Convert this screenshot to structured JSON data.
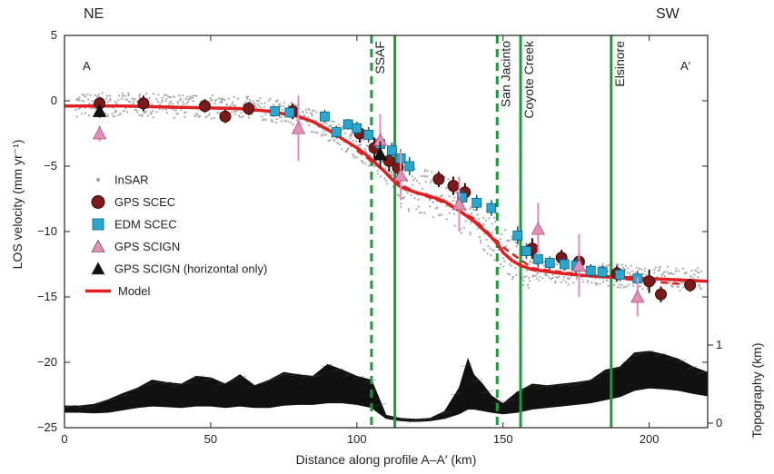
{
  "chart_data": {
    "type": "scatter",
    "corner_labels": {
      "left": "NE",
      "right": "SW"
    },
    "profile_labels": {
      "start": "A",
      "end": "A′"
    },
    "xlabel": "Distance along profile A–A′ (km)",
    "ylabel": "LOS velocity (mm yr⁻¹)",
    "ylabel_right": "Topography (km)",
    "xlim": [
      0,
      220
    ],
    "ylim": [
      -25,
      5
    ],
    "topo_lim": [
      0,
      1
    ],
    "x_ticks": [
      0,
      50,
      100,
      150,
      200
    ],
    "x_tick_labels": [
      "0",
      "50",
      "100",
      "150",
      "200"
    ],
    "y_ticks": [
      5,
      0,
      -5,
      -10,
      -15,
      -20,
      -25
    ],
    "y_tick_labels": [
      "5",
      "0",
      "−5",
      "−10",
      "−15",
      "−20",
      "−25"
    ],
    "topo_ticks": [
      0,
      1
    ],
    "topo_tick_labels": [
      "0",
      "1"
    ],
    "faults": [
      {
        "name": "SSAF",
        "x": 105,
        "style": "dashed"
      },
      {
        "name": "",
        "x": 113,
        "style": "solid"
      },
      {
        "name": "San Jacinto",
        "x": 148,
        "style": "dashed"
      },
      {
        "name": "Coyote Creek",
        "x": 156,
        "style": "solid"
      },
      {
        "name": "Elsinore",
        "x": 187,
        "style": "solid"
      }
    ],
    "legend": {
      "position": "left",
      "entries": [
        {
          "label": "InSAR",
          "marker": "dot",
          "color": "#a0a0a0"
        },
        {
          "label": "GPS SCEC",
          "marker": "circle",
          "color": "#7a1a1a"
        },
        {
          "label": "EDM SCEC",
          "marker": "square",
          "color": "#2aa6cf"
        },
        {
          "label": "GPS SCIGN",
          "marker": "triangle",
          "color": "#e38fb5"
        },
        {
          "label": "GPS SCIGN (horizontal only)",
          "marker": "triangle",
          "color": "#111111"
        },
        {
          "label": "Model",
          "marker": "line",
          "color": "#e02020"
        }
      ]
    },
    "series": [
      {
        "key": "model",
        "color": "#e02020",
        "x": [
          0,
          20,
          40,
          60,
          70,
          80,
          85,
          90,
          95,
          100,
          103,
          106,
          109,
          112,
          115,
          120,
          125,
          130,
          135,
          140,
          145,
          148,
          150,
          153,
          156,
          160,
          170,
          180,
          190,
          200,
          210,
          220
        ],
        "y": [
          -0.4,
          -0.4,
          -0.5,
          -0.6,
          -0.8,
          -1.2,
          -1.6,
          -2.2,
          -2.9,
          -3.6,
          -4.1,
          -4.7,
          -5.3,
          -6.0,
          -6.6,
          -7.0,
          -7.3,
          -7.7,
          -8.4,
          -9.2,
          -10.2,
          -10.9,
          -11.6,
          -12.2,
          -12.6,
          -12.9,
          -13.2,
          -13.4,
          -13.5,
          -13.6,
          -13.7,
          -13.8
        ]
      },
      {
        "key": "model_alt",
        "color": "#e02020",
        "x": [
          100,
          105,
          110,
          115,
          120,
          130,
          140,
          150,
          160,
          180,
          200,
          215
        ],
        "y": [
          -3.8,
          -4.6,
          -5.5,
          -6.4,
          -7.0,
          -7.8,
          -9.0,
          -11.2,
          -12.8,
          -13.4,
          -13.8,
          -14.1
        ]
      },
      {
        "key": "gps_scec",
        "color": "#7a1a1a",
        "x": [
          12,
          27,
          48,
          55,
          63,
          78,
          101,
          106,
          111,
          114,
          128,
          133,
          137,
          160,
          170,
          176,
          189,
          200,
          214
        ],
        "y": [
          -0.2,
          -0.2,
          -0.4,
          -1.2,
          -0.6,
          -0.8,
          -2.5,
          -3.6,
          -4.6,
          -5.1,
          -6.0,
          -6.5,
          -7.0,
          -11.3,
          -12.0,
          -12.3,
          -13.2,
          -13.8,
          -14.1
        ],
        "err": [
          0.5,
          0.6,
          0.5,
          0.5,
          0.5,
          0.6,
          0.7,
          0.8,
          0.8,
          0.9,
          0.6,
          0.7,
          0.7,
          0.8,
          0.6,
          0.7,
          0.6,
          0.9,
          0.5
        ]
      },
      {
        "key": "gps_scec_low",
        "color": "#7a1a1a",
        "x": [
          204
        ],
        "y": [
          -14.8
        ],
        "err": [
          0.6
        ]
      },
      {
        "key": "edm_scec",
        "color": "#2aa6cf",
        "x": [
          72,
          77,
          89,
          93,
          97,
          100,
          104,
          108,
          112,
          115,
          118,
          136,
          141,
          146,
          155,
          158,
          162,
          166,
          171,
          175,
          180,
          184,
          190,
          196
        ],
        "y": [
          -0.8,
          -0.9,
          -1.2,
          -2.4,
          -1.8,
          -2.1,
          -2.6,
          -3.3,
          -3.8,
          -4.4,
          -5.0,
          -7.4,
          -7.8,
          -8.2,
          -10.3,
          -11.5,
          -12.1,
          -12.4,
          -12.5,
          -12.6,
          -13.0,
          -13.1,
          -13.3,
          -13.6
        ],
        "err": [
          0.4,
          0.4,
          0.5,
          0.5,
          0.4,
          0.5,
          0.6,
          0.6,
          0.6,
          0.7,
          0.7,
          0.6,
          0.6,
          0.6,
          0.7,
          0.6,
          0.6,
          0.5,
          0.5,
          0.6,
          0.5,
          0.5,
          0.5,
          0.6
        ]
      },
      {
        "key": "gps_scign",
        "color": "#e38fb5",
        "x": [
          12,
          80,
          108,
          115,
          135,
          162,
          176,
          196
        ],
        "y": [
          -2.5,
          -2.1,
          -3.0,
          -5.7,
          -7.9,
          -9.8,
          -12.6,
          -15.0
        ],
        "err": [
          0.6,
          2.5,
          2.0,
          1.9,
          2.1,
          2.0,
          2.4,
          1.5
        ]
      },
      {
        "key": "gps_scign_horizontal",
        "color": "#111111",
        "x": [
          12,
          108
        ],
        "y": [
          -0.8,
          -4.1
        ],
        "err": [
          0.5,
          1.0
        ]
      }
    ],
    "topography": {
      "color": "#111111",
      "x": [
        0,
        5,
        10,
        15,
        20,
        25,
        30,
        35,
        40,
        45,
        50,
        55,
        60,
        65,
        70,
        75,
        80,
        85,
        90,
        95,
        100,
        105,
        110,
        115,
        120,
        125,
        130,
        135,
        138,
        140,
        143,
        146,
        150,
        155,
        160,
        165,
        170,
        175,
        180,
        185,
        190,
        195,
        200,
        205,
        210,
        215,
        220
      ],
      "upper": [
        0.22,
        0.22,
        0.24,
        0.3,
        0.38,
        0.45,
        0.55,
        0.52,
        0.5,
        0.6,
        0.58,
        0.5,
        0.62,
        0.48,
        0.55,
        0.65,
        0.62,
        0.6,
        0.75,
        0.68,
        0.6,
        0.55,
        0.1,
        0.06,
        0.05,
        0.06,
        0.15,
        0.45,
        0.82,
        0.62,
        0.5,
        0.35,
        0.25,
        0.4,
        0.5,
        0.48,
        0.5,
        0.52,
        0.55,
        0.68,
        0.72,
        0.9,
        0.92,
        0.88,
        0.82,
        0.72,
        0.65
      ],
      "lower": [
        0.14,
        0.14,
        0.13,
        0.14,
        0.17,
        0.2,
        0.22,
        0.21,
        0.2,
        0.22,
        0.22,
        0.2,
        0.22,
        0.2,
        0.2,
        0.23,
        0.24,
        0.24,
        0.26,
        0.26,
        0.24,
        0.2,
        0.06,
        0.03,
        0.02,
        0.03,
        0.06,
        0.12,
        0.18,
        0.18,
        0.16,
        0.14,
        0.12,
        0.14,
        0.18,
        0.2,
        0.22,
        0.24,
        0.26,
        0.3,
        0.34,
        0.42,
        0.45,
        0.44,
        0.42,
        0.38,
        0.35
      ]
    }
  }
}
